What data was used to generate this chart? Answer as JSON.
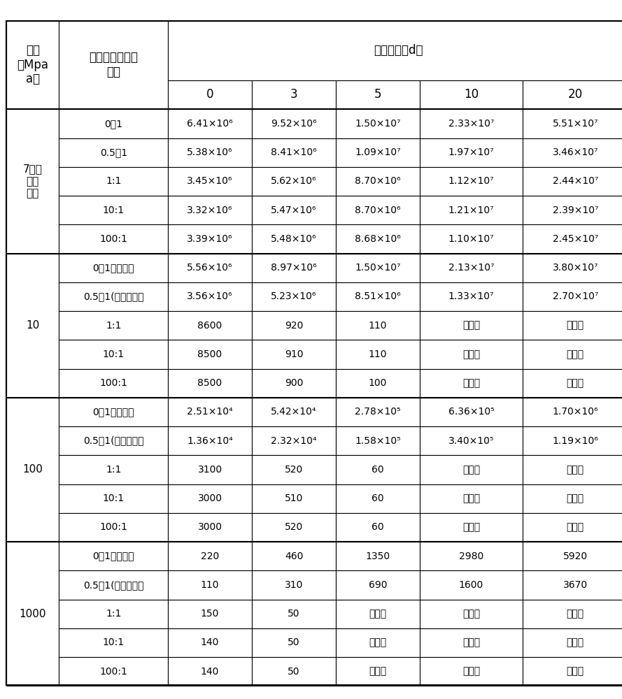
{
  "col_headers_row1": [
    "压力\n（Mpa\na）",
    "杨梅汁与菌液体\n积比",
    "贮藏时间（d）"
  ],
  "col_headers_row2": [
    "",
    "",
    "0",
    "3",
    "5",
    "10",
    "20"
  ],
  "pressure_groups": [
    {
      "pressure": "7（作\n为对\n照）",
      "rows": [
        {
          "ratio": "0：1",
          "d0": "6.41×10⁶",
          "d3": "9.52×10⁶",
          "d5": "1.50×10⁷",
          "d10": "2.33×10⁷",
          "d20": "5.51×10⁷"
        },
        {
          "ratio": "0.5：1",
          "d0": "5.38×10⁶",
          "d3": "8.41×10⁶",
          "d5": "1.09×10⁷",
          "d10": "1.97×10⁷",
          "d20": "3.46×10⁷"
        },
        {
          "ratio": "1:1",
          "d0": "3.45×10⁶",
          "d3": "5.62×10⁶",
          "d5": "8.70×10⁶",
          "d10": "1.12×10⁷",
          "d20": "2.44×10⁷"
        },
        {
          "ratio": "10:1",
          "d0": "3.32×10⁶",
          "d3": "5.47×10⁶",
          "d5": "8.70×10⁶",
          "d10": "1.21×10⁷",
          "d20": "2.39×10⁷"
        },
        {
          "ratio": "100:1",
          "d0": "3.39×10⁶",
          "d3": "5.48×10⁶",
          "d5": "8.68×10⁶",
          "d10": "1.10×10⁷",
          "d20": "2.45×10⁷"
        }
      ]
    },
    {
      "pressure": "10",
      "rows": [
        {
          "ratio": "0：1（空白）",
          "d0": "5.56×10⁶",
          "d3": "8.97×10⁶",
          "d5": "1.50×10⁷",
          "d10": "2.13×10⁷",
          "d20": "3.80×10⁷"
        },
        {
          "ratio": "0.5：1(作为对照）",
          "d0": "3.56×10⁶",
          "d3": "5.23×10⁶",
          "d5": "8.51×10⁶",
          "d10": "1.33×10⁷",
          "d20": "2.70×10⁷"
        },
        {
          "ratio": "1:1",
          "d0": "8600",
          "d3": "920",
          "d5": "110",
          "d10": "未检出",
          "d20": "未检出"
        },
        {
          "ratio": "10:1",
          "d0": "8500",
          "d3": "910",
          "d5": "110",
          "d10": "未检出",
          "d20": "未检出"
        },
        {
          "ratio": "100:1",
          "d0": "8500",
          "d3": "900",
          "d5": "100",
          "d10": "未检出",
          "d20": "未检出"
        }
      ]
    },
    {
      "pressure": "100",
      "rows": [
        {
          "ratio": "0：1（空白）",
          "d0": "2.51×10⁴",
          "d3": "5.42×10⁴",
          "d5": "2.78×10⁵",
          "d10": "6.36×10⁵",
          "d20": "1.70×10⁶"
        },
        {
          "ratio": "0.5：1(作为对照）",
          "d0": "1.36×10⁴",
          "d3": "2.32×10⁴",
          "d5": "1.58×10⁵",
          "d10": "3.40×10⁵",
          "d20": "1.19×10⁶"
        },
        {
          "ratio": "1:1",
          "d0": "3100",
          "d3": "520",
          "d5": "60",
          "d10": "未检出",
          "d20": "未检出"
        },
        {
          "ratio": "10:1",
          "d0": "3000",
          "d3": "510",
          "d5": "60",
          "d10": "未检出",
          "d20": "未检出"
        },
        {
          "ratio": "100:1",
          "d0": "3000",
          "d3": "520",
          "d5": "60",
          "d10": "未检出",
          "d20": "未检出"
        }
      ]
    },
    {
      "pressure": "1000",
      "rows": [
        {
          "ratio": "0：1（空白）",
          "d0": "220",
          "d3": "460",
          "d5": "1350",
          "d10": "2980",
          "d20": "5920"
        },
        {
          "ratio": "0.5：1(作为对照）",
          "d0": "110",
          "d3": "310",
          "d5": "690",
          "d10": "1600",
          "d20": "3670"
        },
        {
          "ratio": "1:1",
          "d0": "150",
          "d3": "50",
          "d5": "未检出",
          "d10": "未检出",
          "d20": "未检出"
        },
        {
          "ratio": "10:1",
          "d0": "140",
          "d3": "50",
          "d5": "未检出",
          "d10": "未检出",
          "d20": "未检出"
        },
        {
          "ratio": "100:1",
          "d0": "140",
          "d3": "50",
          "d5": "未检出",
          "d10": "未检出",
          "d20": "未检出"
        }
      ]
    }
  ],
  "border_color": "#000000",
  "text_color": "#000000",
  "bg_color": "#ffffff",
  "font_size": 11,
  "header_font_size": 12
}
